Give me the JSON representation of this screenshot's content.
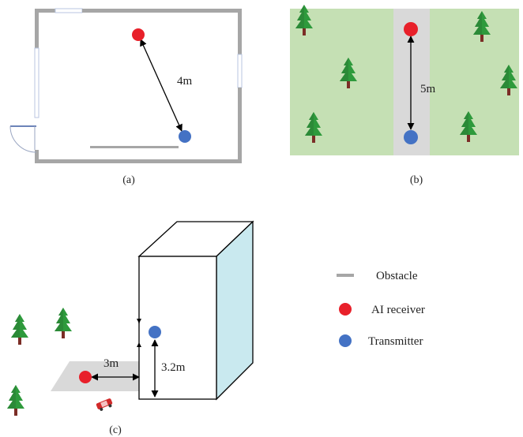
{
  "panels": {
    "a": {
      "caption": "(a)",
      "distance": "4m"
    },
    "b": {
      "caption": "(b)",
      "distance": "5m"
    },
    "c": {
      "caption": "(c)",
      "horizontal_distance": "3m",
      "height": "3.2m"
    }
  },
  "legend": {
    "obstacle": "Obstacle",
    "receiver": "AI receiver",
    "transmitter": "Transmitter"
  },
  "colors": {
    "receiver": "#e8202a",
    "transmitter": "#4472c4",
    "obstacle": "#a6a6a6",
    "grass": "#c5e0b4",
    "road": "#d9d9d9",
    "building_side": "#c9e9ef",
    "tree_green": "#2e9a3c",
    "trunk": "#7b2d26"
  },
  "icons": [
    "tree-icon",
    "car-icon",
    "door-icon"
  ]
}
